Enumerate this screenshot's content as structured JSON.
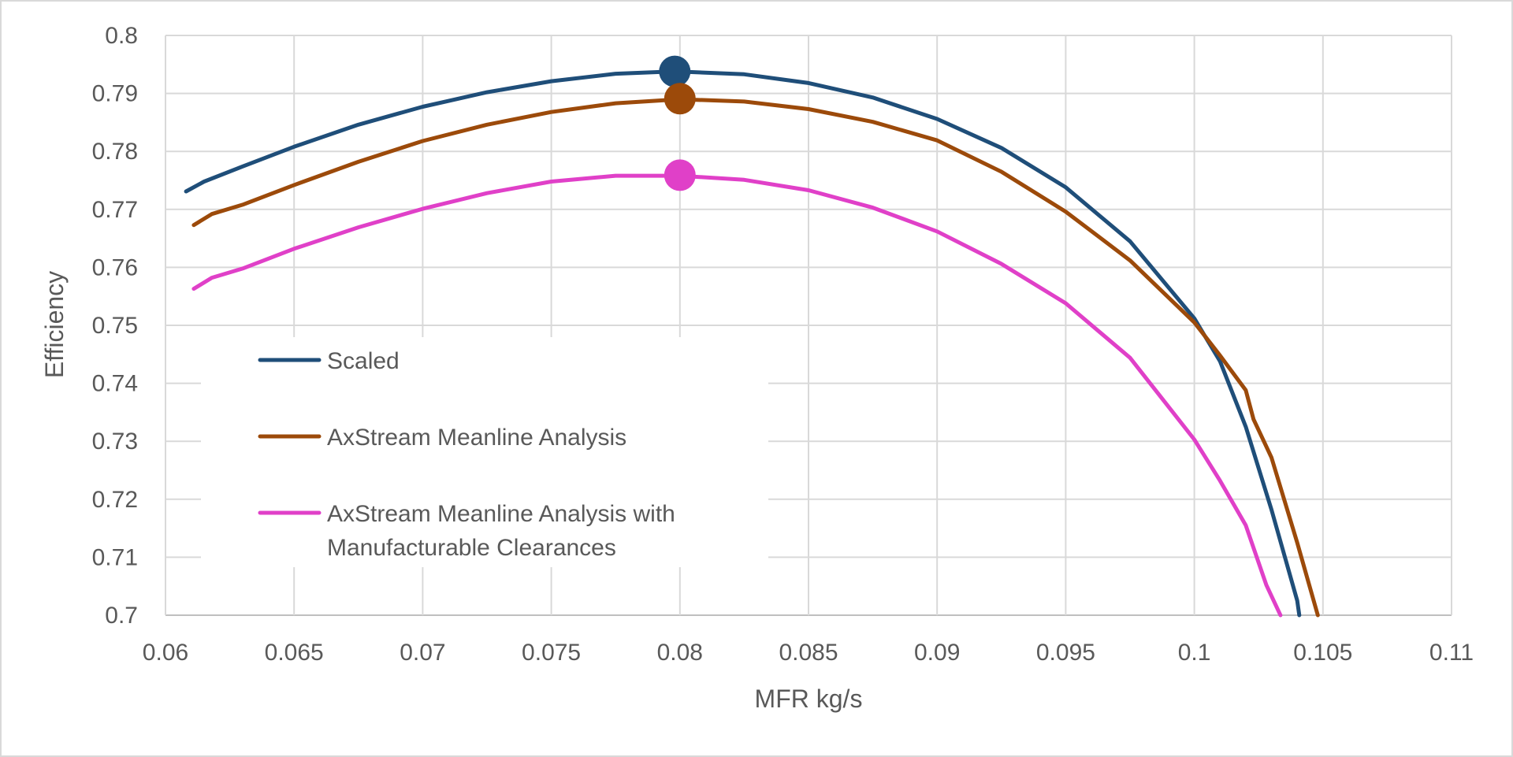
{
  "chart_data": {
    "type": "line",
    "title": "",
    "xlabel": "MFR kg/s",
    "ylabel": "Efficiency",
    "xlim": [
      0.06,
      0.11
    ],
    "ylim": [
      0.7,
      0.8
    ],
    "x_ticks": [
      "0.06",
      "0.065",
      "0.07",
      "0.075",
      "0.08",
      "0.085",
      "0.09",
      "0.095",
      "0.1",
      "0.105",
      "0.11"
    ],
    "y_ticks": [
      "0.8",
      "0.79",
      "0.78",
      "0.77",
      "0.76",
      "0.75",
      "0.74",
      "0.73",
      "0.72",
      "0.71",
      "0.7"
    ],
    "grid": true,
    "legend_position": "left-center",
    "series": [
      {
        "name": "Scaled",
        "color": "#1f4e79",
        "points": [
          [
            0.0608,
            0.7731
          ],
          [
            0.0615,
            0.7748
          ],
          [
            0.063,
            0.7774
          ],
          [
            0.065,
            0.7808
          ],
          [
            0.0675,
            0.7846
          ],
          [
            0.07,
            0.7877
          ],
          [
            0.0725,
            0.7902
          ],
          [
            0.075,
            0.7921
          ],
          [
            0.0775,
            0.7934
          ],
          [
            0.0798,
            0.7938
          ],
          [
            0.0825,
            0.7933
          ],
          [
            0.085,
            0.7918
          ],
          [
            0.0875,
            0.7893
          ],
          [
            0.09,
            0.7856
          ],
          [
            0.0925,
            0.7806
          ],
          [
            0.095,
            0.7738
          ],
          [
            0.0975,
            0.7645
          ],
          [
            0.1,
            0.7512
          ],
          [
            0.101,
            0.7438
          ],
          [
            0.102,
            0.7325
          ],
          [
            0.103,
            0.7182
          ],
          [
            0.104,
            0.7025
          ],
          [
            0.10408,
            0.7
          ]
        ],
        "marker": [
          0.0798,
          0.7938
        ]
      },
      {
        "name": "AxStream Meanline Analysis",
        "color": "#9c4a0a",
        "points": [
          [
            0.0611,
            0.7673
          ],
          [
            0.0618,
            0.7692
          ],
          [
            0.063,
            0.7708
          ],
          [
            0.065,
            0.7742
          ],
          [
            0.0675,
            0.7782
          ],
          [
            0.07,
            0.7818
          ],
          [
            0.0725,
            0.7846
          ],
          [
            0.075,
            0.7868
          ],
          [
            0.0775,
            0.7883
          ],
          [
            0.08,
            0.789
          ],
          [
            0.0825,
            0.7886
          ],
          [
            0.085,
            0.7873
          ],
          [
            0.0875,
            0.7851
          ],
          [
            0.09,
            0.7819
          ],
          [
            0.0925,
            0.7765
          ],
          [
            0.095,
            0.7696
          ],
          [
            0.0975,
            0.7612
          ],
          [
            0.1,
            0.7505
          ],
          [
            0.101,
            0.7448
          ],
          [
            0.102,
            0.7388
          ],
          [
            0.1023,
            0.7338
          ],
          [
            0.103,
            0.7272
          ],
          [
            0.104,
            0.7125
          ],
          [
            0.1048,
            0.7
          ]
        ],
        "marker": [
          0.08,
          0.7891
        ]
      },
      {
        "name": "AxStream Meanline Analysis with Manufacturable Clearances",
        "color": "#e040c8",
        "points": [
          [
            0.0611,
            0.7563
          ],
          [
            0.0618,
            0.7582
          ],
          [
            0.063,
            0.7598
          ],
          [
            0.065,
            0.7632
          ],
          [
            0.0675,
            0.7669
          ],
          [
            0.07,
            0.7701
          ],
          [
            0.0725,
            0.7728
          ],
          [
            0.075,
            0.7748
          ],
          [
            0.0775,
            0.7758
          ],
          [
            0.08,
            0.7758
          ],
          [
            0.0825,
            0.7751
          ],
          [
            0.085,
            0.7733
          ],
          [
            0.0875,
            0.7703
          ],
          [
            0.09,
            0.7662
          ],
          [
            0.0925,
            0.7606
          ],
          [
            0.095,
            0.7538
          ],
          [
            0.0975,
            0.7444
          ],
          [
            0.1,
            0.7303
          ],
          [
            0.101,
            0.7232
          ],
          [
            0.102,
            0.7155
          ],
          [
            0.1028,
            0.7052
          ],
          [
            0.10335,
            0.7
          ]
        ],
        "marker": [
          0.08,
          0.7759
        ]
      }
    ]
  }
}
